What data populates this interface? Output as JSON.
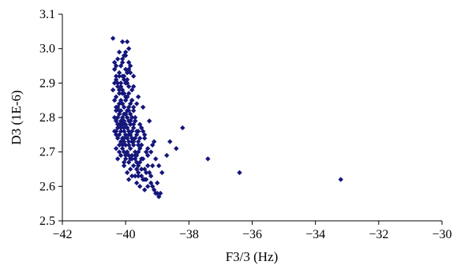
{
  "chart_data": {
    "type": "scatter",
    "title": "",
    "xlabel": "F3/3 (Hz)",
    "ylabel": "D3 (1E-6)",
    "xlim": [
      -42,
      -30
    ],
    "ylim": [
      2.5,
      3.1
    ],
    "xticks": [
      "−42",
      "−40",
      "−38",
      "−36",
      "−34",
      "−32",
      "−30"
    ],
    "yticks": [
      "2.5",
      "2.6",
      "2.7",
      "2.8",
      "2.9",
      "3.0",
      "3.1"
    ],
    "grid": false,
    "legend": "none",
    "marker_color": "#14167a",
    "series": [
      {
        "x": [
          -40.4,
          -40.1,
          -39.95,
          -40.2,
          -40.05,
          -40.25,
          -40.1,
          -39.9,
          -40.3,
          -40.15,
          -40.0,
          -40.35,
          -39.85,
          -40.2,
          -40.05,
          -40.1,
          -40.3,
          -39.95,
          -40.15,
          -40.0,
          -40.25,
          -39.9,
          -40.4,
          -40.1,
          -39.8,
          -40.2,
          -40.05,
          -40.3,
          -39.95,
          -40.15,
          -40.0,
          -40.35,
          -39.85,
          -40.2,
          -40.1,
          -39.9,
          -40.25,
          -40.05,
          -39.75,
          -40.3,
          -40.15,
          -39.95,
          -40.2,
          -40.0,
          -39.85,
          -40.35,
          -40.1,
          -39.8,
          -40.25,
          -40.05,
          -39.9,
          -40.15,
          -40.3,
          -39.7,
          -40.0,
          -40.2,
          -39.85,
          -40.1,
          -39.95,
          -40.25,
          -39.75,
          -40.05,
          -40.35,
          -39.8,
          -40.15,
          -39.9,
          -40.2,
          -39.65,
          -40.0,
          -40.3,
          -39.85,
          -40.1,
          -39.7,
          -40.25,
          -39.95,
          -40.05,
          -39.8,
          -40.15,
          -39.6,
          -40.2,
          -39.9,
          -40.0,
          -39.75,
          -40.3,
          -39.85,
          -40.1,
          -39.55,
          -40.05,
          -39.95,
          -39.7,
          -40.2,
          -39.8,
          -40.15,
          -39.65,
          -39.9,
          -40.0,
          -39.5,
          -40.25,
          -39.85,
          -40.05,
          -39.75,
          -39.95,
          -40.1,
          -39.6,
          -39.8,
          -40.2,
          -39.45,
          -39.9,
          -40.0,
          -39.7,
          -39.85,
          -40.15,
          -39.55,
          -39.95,
          -39.65,
          -40.05,
          -39.4,
          -39.8,
          -39.9,
          -39.75,
          -40.1,
          -39.5,
          -39.85,
          -39.6,
          -39.95,
          -39.35,
          -40.0,
          -39.7,
          -39.8,
          -39.45,
          -39.9,
          -39.55,
          -40.05,
          -39.3,
          -39.75,
          -39.65,
          -39.85,
          -39.4,
          -39.95,
          -39.6,
          -39.25,
          -39.8,
          -39.5,
          -39.7,
          -39.35,
          -39.9,
          -39.45,
          -39.2,
          -39.65,
          -39.55,
          -39.15,
          -39.4,
          -39.3,
          -39.1,
          -39.05,
          -39.0,
          -38.95,
          -38.9,
          -39.2,
          -39.35,
          -39.6,
          -39.7,
          -39.5,
          -39.8,
          -38.7,
          -38.6,
          -38.4,
          -38.2,
          -37.4,
          -36.4,
          -33.2,
          -39.55,
          -39.45,
          -39.25,
          -39.15,
          -40.3,
          -40.0,
          -40.35,
          -40.3,
          -39.9,
          -40.1,
          -40.25,
          -39.95,
          -40.15,
          -40.05,
          -39.85,
          -40.2,
          -39.9,
          -40.0,
          -39.75,
          -40.1,
          -40.3,
          -39.8,
          -40.2,
          -39.65,
          -39.95,
          -40.05,
          -39.7,
          -39.85,
          -40.15,
          -39.6,
          -39.9,
          -39.5,
          -39.75,
          -39.4,
          -39.6,
          -39.3,
          -39.2,
          -39.05,
          -38.95,
          -39.1,
          -39.3,
          -39.5,
          -39.65,
          -39.8,
          -39.0,
          -38.85,
          -39.15,
          -39.4,
          -39.6,
          -39.75,
          -39.9,
          -40.0,
          -40.2,
          -40.35,
          -40.1,
          -39.95,
          -40.25,
          -40.05,
          -39.85
        ],
        "y": [
          3.03,
          3.02,
          3.02,
          2.99,
          2.98,
          2.97,
          2.96,
          2.96,
          2.95,
          2.95,
          2.94,
          2.94,
          2.93,
          2.93,
          2.92,
          2.92,
          2.91,
          2.91,
          2.9,
          2.9,
          2.89,
          2.89,
          2.88,
          2.88,
          2.88,
          2.87,
          2.87,
          2.86,
          2.86,
          2.85,
          2.85,
          2.85,
          2.84,
          2.84,
          2.84,
          2.83,
          2.83,
          2.83,
          2.83,
          2.82,
          2.82,
          2.82,
          2.81,
          2.81,
          2.81,
          2.8,
          2.8,
          2.8,
          2.8,
          2.79,
          2.79,
          2.79,
          2.79,
          2.79,
          2.78,
          2.78,
          2.78,
          2.78,
          2.77,
          2.77,
          2.77,
          2.77,
          2.76,
          2.76,
          2.76,
          2.76,
          2.75,
          2.75,
          2.75,
          2.75,
          2.75,
          2.74,
          2.74,
          2.74,
          2.74,
          2.73,
          2.73,
          2.73,
          2.73,
          2.72,
          2.72,
          2.72,
          2.72,
          2.71,
          2.71,
          2.71,
          2.71,
          2.7,
          2.7,
          2.7,
          2.7,
          2.69,
          2.69,
          2.69,
          2.69,
          2.68,
          2.68,
          2.68,
          2.68,
          2.67,
          2.92,
          2.9,
          2.87,
          2.86,
          2.85,
          2.84,
          2.83,
          2.82,
          2.81,
          2.8,
          2.79,
          2.78,
          2.78,
          2.77,
          2.76,
          2.76,
          2.75,
          2.74,
          2.73,
          2.73,
          2.72,
          2.72,
          2.71,
          2.7,
          2.7,
          2.7,
          2.69,
          2.69,
          2.68,
          2.68,
          2.67,
          2.67,
          2.66,
          2.66,
          2.66,
          2.65,
          2.65,
          2.65,
          2.64,
          2.64,
          2.64,
          2.63,
          2.63,
          2.63,
          2.62,
          2.62,
          2.62,
          2.61,
          2.61,
          2.6,
          2.6,
          2.59,
          2.6,
          2.59,
          2.58,
          2.58,
          2.57,
          2.58,
          2.63,
          2.64,
          2.66,
          2.68,
          2.72,
          2.74,
          2.69,
          2.73,
          2.71,
          2.77,
          2.68,
          2.64,
          2.62,
          2.74,
          2.76,
          2.79,
          2.72,
          2.76,
          2.99,
          2.96,
          2.92,
          2.94,
          2.97,
          2.9,
          2.93,
          2.89,
          2.91,
          2.95,
          2.88,
          2.87,
          2.86,
          2.89,
          2.84,
          2.83,
          2.85,
          2.82,
          2.84,
          2.8,
          2.81,
          2.79,
          2.78,
          2.77,
          2.76,
          2.75,
          2.77,
          2.78,
          2.74,
          2.72,
          2.71,
          2.7,
          2.68,
          2.66,
          2.73,
          2.69,
          2.65,
          2.67,
          2.74,
          2.61,
          2.64,
          2.66,
          2.62,
          2.63,
          2.82,
          3.0,
          2.98,
          2.92,
          2.9,
          2.87,
          2.86,
          2.78,
          2.74,
          2.79
        ]
      }
    ]
  }
}
